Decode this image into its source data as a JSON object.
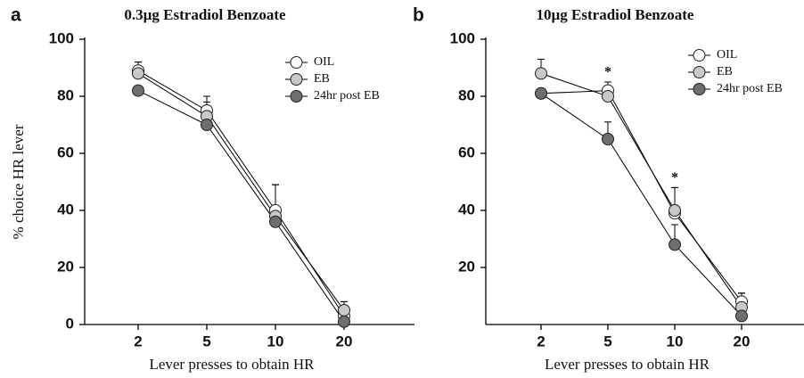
{
  "chart_data": [
    {
      "type": "line",
      "panel_label": "a",
      "title": "0.3µg Estradiol Benzoate",
      "xlabel": "Lever presses to obtain HR",
      "ylabel": "% choice HR lever",
      "categories": [
        "2",
        "5",
        "10",
        "20"
      ],
      "ylim": [
        0,
        100
      ],
      "yticks": [
        0,
        20,
        40,
        60,
        80,
        100
      ],
      "series": [
        {
          "name": "OIL",
          "color": "#ffffff",
          "values": [
            89,
            75,
            40,
            3
          ],
          "errors": [
            3,
            5,
            9,
            5
          ]
        },
        {
          "name": "EB",
          "color": "#c8c8c8",
          "values": [
            88,
            73,
            38,
            5
          ],
          "errors": [
            4,
            5,
            11,
            3
          ]
        },
        {
          "name": "24hr post EB",
          "color": "#6e6e6e",
          "values": [
            82,
            70,
            36,
            1
          ],
          "errors": [
            null,
            null,
            null,
            null
          ]
        }
      ]
    },
    {
      "type": "line",
      "panel_label": "b",
      "title": "10µg Estradiol Benzoate",
      "xlabel": "Lever presses to obtain HR",
      "categories": [
        "2",
        "5",
        "10",
        "20"
      ],
      "ylim": [
        0,
        100
      ],
      "yticks": [
        20,
        40,
        60,
        80,
        100
      ],
      "annotations": [
        {
          "text": "*",
          "x": "5"
        },
        {
          "text": "*",
          "x": "10"
        }
      ],
      "series": [
        {
          "name": "OIL",
          "color": "#ffffff",
          "values": [
            81,
            82,
            39,
            8
          ],
          "errors": [
            null,
            3,
            9,
            3
          ]
        },
        {
          "name": "EB",
          "color": "#c8c8c8",
          "values": [
            88,
            80,
            40,
            6
          ],
          "errors": [
            5,
            null,
            8,
            5
          ]
        },
        {
          "name": "24hr post EB",
          "color": "#6e6e6e",
          "values": [
            81,
            65,
            28,
            3
          ],
          "errors": [
            null,
            6,
            7,
            null
          ]
        }
      ]
    }
  ]
}
